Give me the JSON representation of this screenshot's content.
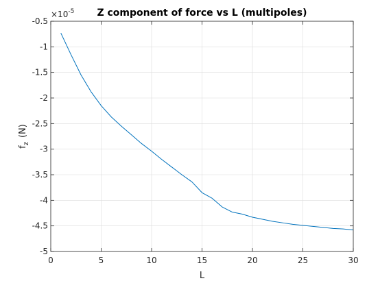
{
  "chart_data": {
    "type": "line",
    "title": "Z component of force vs L (multipoles)",
    "xlabel": "L",
    "ylabel_main": "f",
    "ylabel_sub": "z",
    "ylabel_unit": "(N)",
    "y_exponent_prefix": "×10",
    "y_exponent_power": "-5",
    "xlim": [
      0,
      30
    ],
    "ylim": [
      -5,
      -0.5
    ],
    "x_ticks": [
      0,
      5,
      10,
      15,
      20,
      25,
      30
    ],
    "x_tick_labels": [
      "0",
      "5",
      "10",
      "15",
      "20",
      "25",
      "30"
    ],
    "y_ticks": [
      -0.5,
      -1,
      -1.5,
      -2,
      -2.5,
      -3,
      -3.5,
      -4,
      -4.5,
      -5
    ],
    "y_tick_labels": [
      "-0.5",
      "-1",
      "-1.5",
      "-2",
      "-2.5",
      "-3",
      "-3.5",
      "-4",
      "-4.5",
      "-5"
    ],
    "grid": true,
    "line_color": "#0072BD",
    "series": [
      {
        "x": [
          1,
          2,
          3,
          4,
          5,
          6,
          7,
          8,
          9,
          10,
          11,
          12,
          13,
          14,
          15,
          16,
          17,
          18,
          19,
          20,
          21,
          22,
          23,
          24,
          25,
          26,
          27,
          28,
          29,
          30
        ],
        "values": [
          -0.73,
          -1.15,
          -1.55,
          -1.88,
          -2.15,
          -2.37,
          -2.55,
          -2.72,
          -2.89,
          -3.04,
          -3.2,
          -3.35,
          -3.5,
          -3.64,
          -3.85,
          -3.96,
          -4.13,
          -4.23,
          -4.27,
          -4.33,
          -4.37,
          -4.41,
          -4.44,
          -4.47,
          -4.49,
          -4.51,
          -4.53,
          -4.55,
          -4.56,
          -4.58
        ]
      }
    ]
  }
}
